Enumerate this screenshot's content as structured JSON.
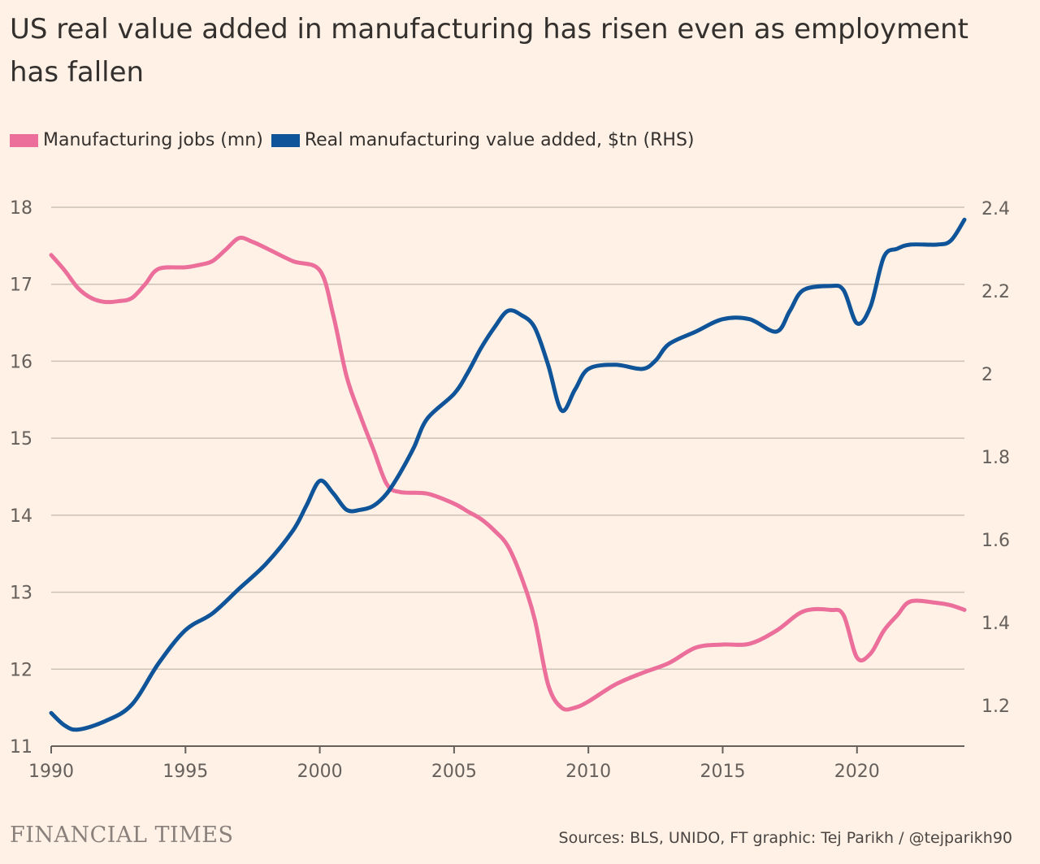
{
  "title": "US real value added in manufacturing has risen even as employment has fallen",
  "legend": {
    "jobs_label": "Manufacturing jobs (mn)",
    "value_label": "Real manufacturing value added, $tn (RHS)"
  },
  "colors": {
    "jobs": "#eb6e9b",
    "value": "#0f5499",
    "grid": "#ccc1b7",
    "axis": "#66605c",
    "background": "#fff1e5"
  },
  "footer": {
    "logo": "FINANCIAL TIMES",
    "source": "Sources: BLS, UNIDO, FT graphic: Tej Parikh / @tejparikh90"
  },
  "chart_data": {
    "type": "line",
    "title": "US real value added in manufacturing has risen even as employment has fallen",
    "xlabel": "",
    "ylabel_left": "Manufacturing jobs (mn)",
    "ylabel_right": "Real manufacturing value added, $tn (RHS)",
    "xlim": [
      1990,
      2024
    ],
    "ylim_left": [
      11,
      18
    ],
    "ylim_right": [
      1.1,
      2.4
    ],
    "x_ticks": [
      1990,
      1995,
      2000,
      2005,
      2010,
      2015,
      2020
    ],
    "left_ticks": [
      11,
      12,
      13,
      14,
      15,
      16,
      17,
      18
    ],
    "right_ticks": [
      1.2,
      1.4,
      1.6,
      1.8,
      2,
      2.2,
      2.4
    ],
    "grid": true,
    "series": [
      {
        "name": "Manufacturing jobs (mn)",
        "axis": "left",
        "x": [
          1990,
          1990.5,
          1991,
          1991.5,
          1992,
          1992.5,
          1993,
          1993.5,
          1994,
          1995,
          1995.5,
          1996,
          1996.5,
          1997,
          1997.5,
          1998,
          1999,
          2000,
          2000.5,
          2001,
          2001.5,
          2002,
          2002.5,
          2003,
          2004,
          2005,
          2005.5,
          2006,
          2006.5,
          2007,
          2007.5,
          2008,
          2008.5,
          2009,
          2009.5,
          2010,
          2011,
          2012,
          2013,
          2014,
          2015,
          2016,
          2017,
          2018,
          2019,
          2019.5,
          2020,
          2020.5,
          2021,
          2021.5,
          2022,
          2023,
          2023.5,
          2024
        ],
        "values": [
          17.38,
          17.18,
          16.95,
          16.82,
          16.77,
          16.78,
          16.82,
          17.0,
          17.2,
          17.22,
          17.25,
          17.3,
          17.45,
          17.6,
          17.55,
          17.47,
          17.3,
          17.18,
          16.6,
          15.8,
          15.3,
          14.85,
          14.4,
          14.3,
          14.28,
          14.15,
          14.05,
          13.95,
          13.8,
          13.6,
          13.2,
          12.65,
          11.8,
          11.5,
          11.5,
          11.58,
          11.8,
          11.95,
          12.08,
          12.28,
          12.32,
          12.33,
          12.5,
          12.75,
          12.77,
          12.7,
          12.15,
          12.2,
          12.5,
          12.7,
          12.88,
          12.86,
          12.83,
          12.77
        ]
      },
      {
        "name": "Real manufacturing value added, $tn (RHS)",
        "axis": "right",
        "x": [
          1990,
          1990.5,
          1991,
          1992,
          1993,
          1994,
          1995,
          1996,
          1997,
          1998,
          1999,
          1999.5,
          2000,
          2000.5,
          2001,
          2001.5,
          2002,
          2002.5,
          2003,
          2003.5,
          2004,
          2005,
          2005.5,
          2006,
          2006.5,
          2007,
          2007.5,
          2008,
          2008.5,
          2009,
          2009.5,
          2010,
          2011,
          2012,
          2012.5,
          2013,
          2014,
          2015,
          2016,
          2017,
          2017.5,
          2018,
          2019,
          2019.5,
          2020,
          2020.5,
          2021,
          2021.5,
          2022,
          2023,
          2023.5,
          2024
        ],
        "values": [
          1.18,
          1.15,
          1.14,
          1.16,
          1.2,
          1.3,
          1.38,
          1.42,
          1.48,
          1.54,
          1.62,
          1.68,
          1.74,
          1.71,
          1.67,
          1.67,
          1.68,
          1.71,
          1.76,
          1.82,
          1.89,
          1.95,
          2.0,
          2.06,
          2.11,
          2.15,
          2.14,
          2.11,
          2.02,
          1.91,
          1.96,
          2.01,
          2.02,
          2.01,
          2.03,
          2.07,
          2.1,
          2.13,
          2.13,
          2.1,
          2.15,
          2.2,
          2.21,
          2.2,
          2.12,
          2.16,
          2.28,
          2.3,
          2.31,
          2.31,
          2.32,
          2.37
        ]
      }
    ]
  }
}
